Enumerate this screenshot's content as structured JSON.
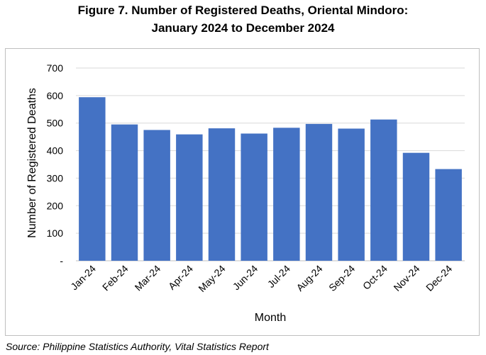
{
  "figure_title": {
    "line1": "Figure 7. Number of Registered Deaths, Oriental Mindoro:",
    "line2": "January 2024 to December 2024"
  },
  "source": "Source: Philippine Statistics Authority, Vital Statistics Report",
  "chart_data": {
    "type": "bar",
    "title": "Figure 7. Number of Registered Deaths, Oriental Mindoro: January 2024 to December 2024",
    "xlabel": "Month",
    "ylabel": "Number of Registered Deaths",
    "categories": [
      "Jan-24",
      "Feb-24",
      "Mar-24",
      "Apr-24",
      "May-24",
      "Jun-24",
      "Jul-24",
      "Aug-24",
      "Sep-24",
      "Oct-24",
      "Nov-24",
      "Dec-24"
    ],
    "values": [
      594,
      495,
      475,
      459,
      481,
      462,
      483,
      497,
      480,
      513,
      392,
      333
    ],
    "ylim": [
      0,
      700
    ],
    "yticks": [
      0,
      100,
      200,
      300,
      400,
      500,
      600,
      700
    ],
    "ytick_labels": [
      "-",
      "100",
      "200",
      "300",
      "400",
      "500",
      "600",
      "700"
    ],
    "grid": true,
    "bar_color": "#4472c4",
    "grid_color": "#d9d9d9"
  }
}
